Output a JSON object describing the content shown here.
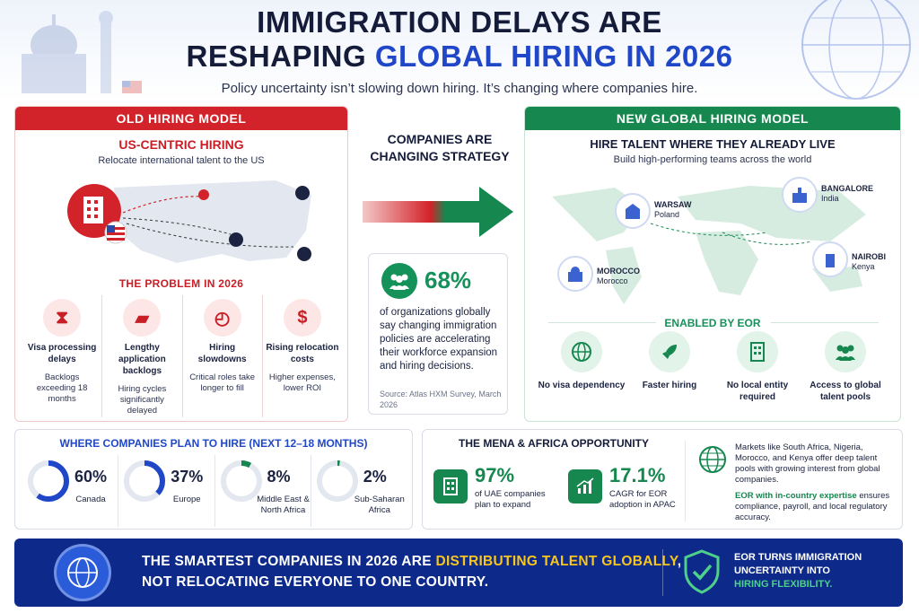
{
  "header": {
    "title_line1": "IMMIGRATION DELAYS ARE",
    "title_line2_prefix": "RESHAPING ",
    "title_line2_highlight": "GLOBAL HIRING IN 2026",
    "subtitle": "Policy uncertainty isn’t slowing down hiring. It’s changing where companies hire."
  },
  "old_model": {
    "header": "OLD HIRING MODEL",
    "title": "US-CENTRIC HIRING",
    "description": "Relocate international talent to the US",
    "problem_title": "THE PROBLEM IN 2026",
    "problems": [
      {
        "icon": "hourglass-icon",
        "title": "Visa processing delays",
        "detail": "Backlogs exceeding 18 months"
      },
      {
        "icon": "folder-icon",
        "title": "Lengthy application backlogs",
        "detail": "Hiring cycles significantly delayed"
      },
      {
        "icon": "clock-icon",
        "title": "Hiring slowdowns",
        "detail": "Critical roles take longer to fill"
      },
      {
        "icon": "dollar-icon",
        "title": "Rising relocation costs",
        "detail": "Higher expenses, lower ROI"
      }
    ]
  },
  "middle": {
    "title": "COMPANIES ARE CHANGING STRATEGY",
    "stat_value": "68%",
    "stat_text": "of organizations globally say changing immigration policies are accelerating their workforce expansion and hiring decisions.",
    "source": "Source: Atlas HXM Survey, March 2026"
  },
  "new_model": {
    "header": "NEW GLOBAL HIRING MODEL",
    "title": "HIRE TALENT WHERE THEY ALREADY LIVE",
    "description": "Build high-performing teams across the world",
    "locations": [
      {
        "city": "WARSAW",
        "country": "Poland"
      },
      {
        "city": "BANGALORE",
        "country": "India"
      },
      {
        "city": "MOROCCO",
        "country": "Morocco"
      },
      {
        "city": "NAIROBI",
        "country": "Kenya"
      }
    ],
    "enabled_title": "ENABLED BY EOR",
    "features": [
      {
        "icon": "globe-check-icon",
        "label": "No visa dependency"
      },
      {
        "icon": "rocket-icon",
        "label": "Faster hiring"
      },
      {
        "icon": "building-icon",
        "label": "No local entity required"
      },
      {
        "icon": "people-icon",
        "label": "Access to global talent pools"
      }
    ]
  },
  "where": {
    "title": "WHERE COMPANIES PLAN TO HIRE (NEXT 12–18 MONTHS)",
    "regions": [
      {
        "pct": "60%",
        "value": 60,
        "label": "Canada",
        "color": "#1f47c8"
      },
      {
        "pct": "37%",
        "value": 37,
        "label": "Europe",
        "color": "#1f47c8"
      },
      {
        "pct": "8%",
        "value": 8,
        "label": "Middle East & North Africa",
        "color": "#16874f"
      },
      {
        "pct": "2%",
        "value": 2,
        "label": "Sub-Saharan Africa",
        "color": "#16874f"
      }
    ]
  },
  "mena": {
    "title": "THE MENA & AFRICA OPPORTUNITY",
    "stat1_value": "97%",
    "stat1_text": "of UAE companies plan to expand",
    "stat2_value": "17.1%",
    "stat2_text": "CAGR for EOR adoption in APAC",
    "markets": "Markets like South Africa, Nigeria, Morocco, and Kenya offer deep talent pools with growing interest from global companies.",
    "eor_highlight": "EOR with in-country expertise",
    "eor_rest": "ensures compliance, payroll, and local regulatory accuracy."
  },
  "banner": {
    "line1_prefix": "THE SMARTEST COMPANIES IN 2026 ARE ",
    "line1_highlight": "DISTRIBUTING TALENT GLOBALLY",
    "line1_suffix": ",",
    "line2": "NOT RELOCATING EVERYONE TO ONE COUNTRY.",
    "right_line": "EOR TURNS IMMIGRATION UNCERTAINTY INTO",
    "right_highlight": "HIRING FLEXIBILITY."
  }
}
